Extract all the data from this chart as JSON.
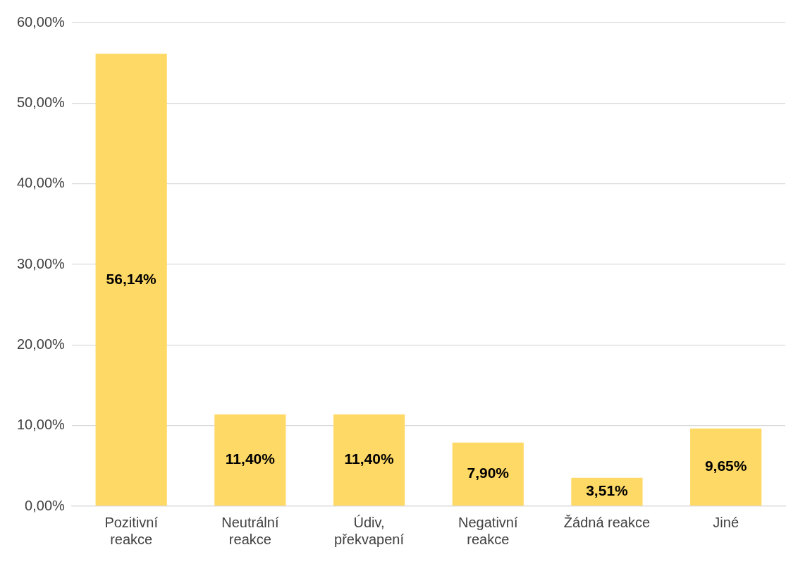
{
  "chart_data": {
    "type": "bar",
    "categories": [
      "Pozitivní reakce",
      "Neutrální reakce",
      "Údiv, překvapení",
      "Negativní reakce",
      "Žádná reakce",
      "Jiné"
    ],
    "values": [
      56.14,
      11.4,
      11.4,
      7.9,
      3.51,
      9.65
    ],
    "value_labels": [
      "56,14%",
      "11,40%",
      "11,40%",
      "7,90%",
      "3,51%",
      "9,65%"
    ],
    "color": "#ffd966",
    "ylim": [
      0,
      60
    ],
    "yticks": [
      {
        "value": 0,
        "label": "0,00%"
      },
      {
        "value": 10,
        "label": "10,00%"
      },
      {
        "value": 20,
        "label": "20,00%"
      },
      {
        "value": 30,
        "label": "30,00%"
      },
      {
        "value": 40,
        "label": "40,00%"
      },
      {
        "value": 50,
        "label": "50,00%"
      },
      {
        "value": 60,
        "label": "60,00%"
      }
    ],
    "grid": "y",
    "legend": false
  }
}
